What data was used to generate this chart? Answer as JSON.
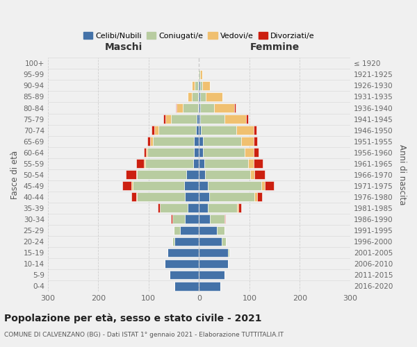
{
  "age_groups": [
    "0-4",
    "5-9",
    "10-14",
    "15-19",
    "20-24",
    "25-29",
    "30-34",
    "35-39",
    "40-44",
    "45-49",
    "50-54",
    "55-59",
    "60-64",
    "65-69",
    "70-74",
    "75-79",
    "80-84",
    "85-89",
    "90-94",
    "95-99",
    "100+"
  ],
  "birth_years": [
    "2016-2020",
    "2011-2015",
    "2006-2010",
    "2001-2005",
    "1996-2000",
    "1991-1995",
    "1986-1990",
    "1981-1985",
    "1976-1980",
    "1971-1975",
    "1966-1970",
    "1961-1965",
    "1956-1960",
    "1951-1955",
    "1946-1950",
    "1941-1945",
    "1936-1940",
    "1931-1935",
    "1926-1930",
    "1921-1925",
    "≤ 1920"
  ],
  "male_celibe": [
    48,
    58,
    68,
    62,
    48,
    38,
    28,
    22,
    28,
    30,
    25,
    12,
    10,
    10,
    6,
    4,
    2,
    2,
    2,
    0,
    0
  ],
  "male_coniugato": [
    0,
    0,
    0,
    0,
    5,
    12,
    25,
    55,
    95,
    102,
    98,
    95,
    92,
    82,
    75,
    52,
    30,
    12,
    7,
    1,
    0
  ],
  "male_vedovo": [
    0,
    0,
    0,
    0,
    0,
    0,
    0,
    0,
    1,
    2,
    2,
    2,
    3,
    5,
    8,
    10,
    12,
    8,
    5,
    1,
    0
  ],
  "male_divorziato": [
    0,
    0,
    0,
    0,
    0,
    0,
    3,
    5,
    10,
    18,
    20,
    15,
    5,
    5,
    5,
    5,
    2,
    0,
    0,
    0,
    0
  ],
  "female_nubile": [
    42,
    50,
    58,
    58,
    45,
    35,
    22,
    18,
    20,
    18,
    12,
    10,
    8,
    8,
    4,
    3,
    2,
    2,
    2,
    0,
    0
  ],
  "female_coniugata": [
    0,
    0,
    0,
    2,
    8,
    15,
    28,
    58,
    90,
    105,
    90,
    88,
    82,
    75,
    70,
    48,
    28,
    12,
    5,
    2,
    0
  ],
  "female_vedova": [
    0,
    0,
    0,
    0,
    0,
    0,
    0,
    2,
    5,
    8,
    8,
    10,
    18,
    25,
    35,
    42,
    40,
    32,
    15,
    4,
    0
  ],
  "female_divorziata": [
    0,
    0,
    0,
    0,
    0,
    0,
    2,
    5,
    10,
    18,
    20,
    18,
    10,
    8,
    5,
    5,
    2,
    0,
    0,
    0,
    0
  ],
  "colors": {
    "celibe": "#4472a8",
    "coniugato": "#b8cca0",
    "vedovo": "#f0c070",
    "divorziato": "#cc2010"
  },
  "xlim": 300,
  "title": "Popolazione per età, sesso e stato civile - 2021",
  "subtitle": "COMUNE DI CALVENZANO (BG) - Dati ISTAT 1° gennaio 2021 - Elaborazione TUTTITALIA.IT",
  "label_maschi": "Maschi",
  "label_femmine": "Femmine",
  "ylabel_left": "Fasce di età",
  "ylabel_right": "Anni di nascita",
  "legend_labels": [
    "Celibi/Nubili",
    "Coniugati/e",
    "Vedovi/e",
    "Divorziati/e"
  ],
  "bg_color": "#f0f0f0"
}
